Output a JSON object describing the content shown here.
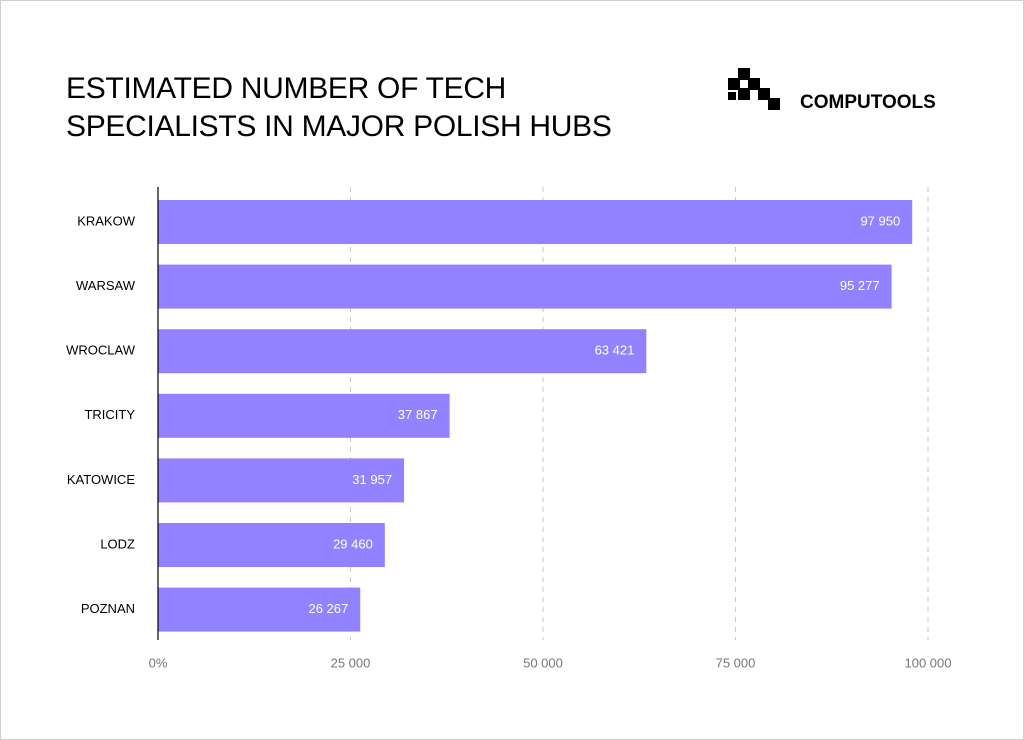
{
  "chart_data": {
    "type": "bar",
    "orientation": "horizontal",
    "title": "ESTIMATED NUMBER OF TECH SPECIALISTS IN MAJOR POLISH HUBS",
    "brand": "COMPUTOOLS",
    "categories": [
      "KRAKOW",
      "WARSAW",
      "WROCLAW",
      "TRICITY",
      "KATOWICE",
      "LODZ",
      "POZNAN"
    ],
    "values": [
      97950,
      95277,
      63421,
      37867,
      31957,
      29460,
      26267
    ],
    "value_labels": [
      "97 950",
      "95 277",
      "63 421",
      "37 867",
      "31 957",
      "29 460",
      "26 267"
    ],
    "color": "#9382ff",
    "xlim": [
      0,
      100000
    ],
    "xticks": [
      {
        "value": 0,
        "label": "0%"
      },
      {
        "value": 25000,
        "label": "25 000"
      },
      {
        "value": 50000,
        "label": "50 000"
      },
      {
        "value": 75000,
        "label": "75 000"
      },
      {
        "value": 100000,
        "label": "100 000"
      }
    ],
    "grid": true
  }
}
